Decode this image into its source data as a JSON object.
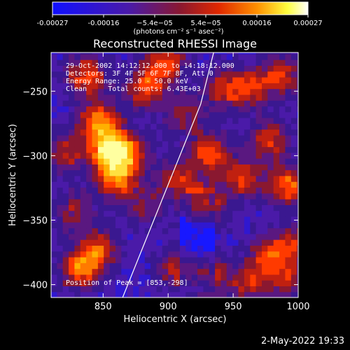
{
  "colorbar": {
    "tick_labels": [
      "-0.00027",
      "-0.00016",
      "−5.4e−05",
      "5.4e−05",
      "0.00016",
      "0.00027"
    ],
    "unit_label": "(photons cm⁻² s⁻¹ asec⁻²)",
    "range": [
      -0.00027,
      0.00027
    ],
    "colors": [
      "#1010ff",
      "#5a1ab0",
      "#a01828",
      "#ff3a00",
      "#ffa000",
      "#ffff60",
      "#ffffff"
    ]
  },
  "chart_data": {
    "type": "heatmap",
    "title": "Reconstructed RHESSI Image",
    "xlabel": "Heliocentric X (arcsec)",
    "ylabel": "Heliocentric Y (arcsec)",
    "xlim": [
      810,
      1000
    ],
    "ylim": [
      -410,
      -220
    ],
    "x_ticks": [
      850,
      900,
      950,
      1000
    ],
    "x_tick_labels": [
      "850",
      "900",
      "950",
      "1000"
    ],
    "y_ticks": [
      -400,
      -350,
      -300,
      -250
    ],
    "y_tick_labels": [
      "−400",
      "−350",
      "−300",
      "−250"
    ],
    "annotations": [
      "29-Oct-2002 14:12:12.000 to 14:18:12.000",
      "Detectors: 3F 4F 5F 6F 7F 8F, Att 0",
      "Energy Range: 25.0 - 50.0 keV",
      "Clean     Total counts: 6.43E+03"
    ],
    "peak_label": "Position of Peak = [853,-298]",
    "peak": [
      853,
      -298
    ],
    "limb": [
      [
        935,
        -220
      ],
      [
        925,
        -260
      ],
      [
        905,
        -310
      ],
      [
        885,
        -360
      ],
      [
        865,
        -410
      ]
    ]
  },
  "footer": {
    "date": "2-May-2022 19:33"
  }
}
